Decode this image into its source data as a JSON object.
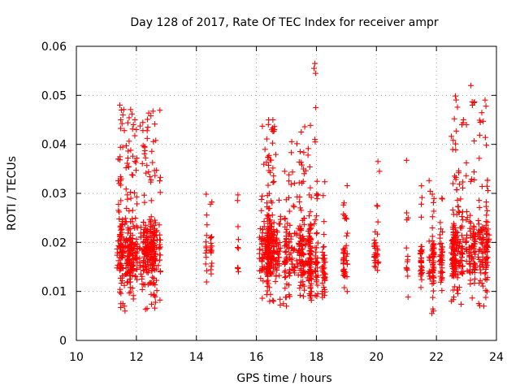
{
  "chart_data": {
    "type": "scatter",
    "title": "Day 128 of 2017, Rate Of TEC Index for receiver ampr",
    "xlabel": "GPS time / hours",
    "ylabel": "ROTI / TECUs",
    "xlim": [
      10,
      24
    ],
    "ylim": [
      0,
      0.06
    ],
    "xticks": [
      10,
      12,
      14,
      16,
      18,
      20,
      22,
      24
    ],
    "xtick_labels": [
      "10",
      "12",
      "14",
      "16",
      "18",
      "20",
      "22",
      "24"
    ],
    "yticks": [
      0,
      0.01,
      0.02,
      0.03,
      0.04,
      0.05,
      0.06
    ],
    "ytick_labels": [
      "0",
      "0.01",
      "0.02",
      "0.03",
      "0.04",
      "0.05",
      "0.06"
    ],
    "grid": true,
    "marker": "+",
    "color": "#ff0000",
    "series": [
      {
        "clusters": [
          {
            "x": [
              11.2,
              12.8
            ],
            "y": [
              0.006,
              0.048
            ],
            "n": 520,
            "center": 0.018
          },
          {
            "x": [
              14.3,
              14.7
            ],
            "y": [
              0.01,
              0.031
            ],
            "n": 30,
            "center": 0.018
          },
          {
            "x": [
              15.3,
              15.45
            ],
            "y": [
              0.014,
              0.031
            ],
            "n": 10,
            "center": 0.02
          },
          {
            "x": [
              16.1,
              17.8
            ],
            "y": [
              0.007,
              0.045
            ],
            "n": 520,
            "center": 0.018
          },
          {
            "x": [
              17.8,
              18.3
            ],
            "y": [
              0.006,
              0.033
            ],
            "n": 120,
            "center": 0.015
          },
          {
            "x": [
              18.9,
              19.1
            ],
            "y": [
              0.009,
              0.034
            ],
            "n": 45,
            "center": 0.017
          },
          {
            "x": [
              19.8,
              20.9
            ],
            "y": [
              0.013,
              0.028
            ],
            "n": 30,
            "center": 0.018
          },
          {
            "x": [
              21.0,
              21.8
            ],
            "y": [
              0.008,
              0.037
            ],
            "n": 60,
            "center": 0.016
          },
          {
            "x": [
              21.8,
              22.2
            ],
            "y": [
              0.005,
              0.03
            ],
            "n": 90,
            "center": 0.016
          },
          {
            "x": [
              22.5,
              23.8
            ],
            "y": [
              0.007,
              0.05
            ],
            "n": 380,
            "center": 0.018
          }
        ],
        "points": [
          [
            11.45,
            0.048
          ],
          [
            11.5,
            0.047
          ],
          [
            11.48,
            0.045
          ],
          [
            11.55,
            0.046
          ],
          [
            11.95,
            0.045
          ],
          [
            12.0,
            0.043
          ],
          [
            11.9,
            0.044
          ],
          [
            17.95,
            0.0565
          ],
          [
            17.92,
            0.0555
          ],
          [
            17.97,
            0.0545
          ],
          [
            17.98,
            0.0475
          ],
          [
            17.95,
            0.041
          ],
          [
            17.96,
            0.0405
          ],
          [
            16.55,
            0.045
          ],
          [
            16.6,
            0.043
          ],
          [
            23.15,
            0.052
          ],
          [
            23.2,
            0.048
          ],
          [
            23.25,
            0.0485
          ],
          [
            23.0,
            0.044
          ],
          [
            22.85,
            0.044
          ],
          [
            22.9,
            0.045
          ],
          [
            20.05,
            0.0365
          ],
          [
            20.1,
            0.0345
          ],
          [
            11.62,
            0.006
          ],
          [
            11.6,
            0.007
          ],
          [
            11.55,
            0.0075
          ],
          [
            21.85,
            0.0055
          ],
          [
            21.9,
            0.006
          ],
          [
            23.58,
            0.007
          ],
          [
            16.9,
            0.0075
          ],
          [
            17.0,
            0.007
          ]
        ]
      }
    ]
  }
}
